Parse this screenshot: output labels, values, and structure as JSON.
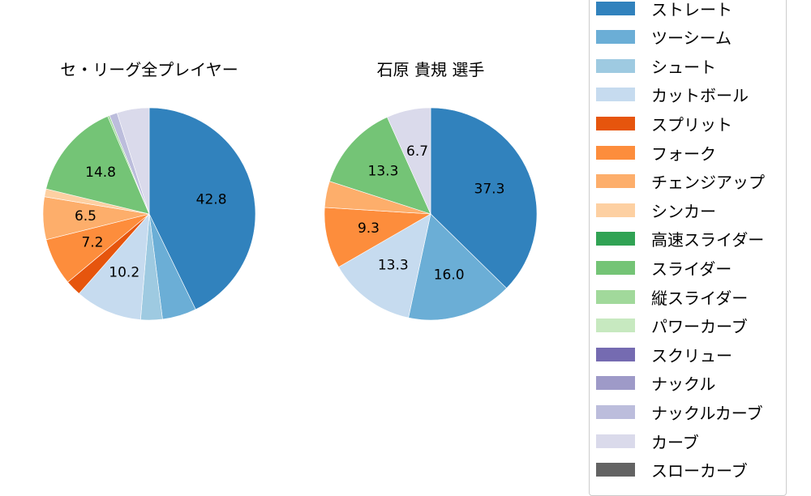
{
  "chart_data": [
    {
      "type": "pie",
      "title": "セ・リーグ全プレイヤー",
      "start_angle": "12 o'clock, clockwise",
      "categories": [
        "ストレート",
        "ツーシーム",
        "シュート",
        "カットボール",
        "スプリット",
        "フォーク",
        "チェンジアップ",
        "シンカー",
        "スライダー",
        "縦スライダー",
        "ナックルカーブ",
        "カーブ"
      ],
      "values": [
        42.8,
        5.2,
        3.3,
        10.2,
        2.4,
        7.2,
        6.5,
        1.2,
        14.8,
        0.3,
        1.2,
        4.9
      ],
      "colors": [
        "#3182bd",
        "#6baed6",
        "#9ecae1",
        "#c6dbef",
        "#e6550d",
        "#fd8d3c",
        "#fdae6b",
        "#fdd0a2",
        "#74c476",
        "#a1d99b",
        "#bcbddc",
        "#dadaeb"
      ],
      "labeled_values": [
        42.8,
        10.2,
        14.8
      ]
    },
    {
      "type": "pie",
      "title": "石原 貴規  選手",
      "start_angle": "12 o'clock, clockwise",
      "categories": [
        "ストレート",
        "ツーシーム",
        "カットボール",
        "フォーク",
        "チェンジアップ",
        "スライダー",
        "カーブ"
      ],
      "values": [
        37.3,
        16.0,
        13.3,
        9.3,
        4.0,
        13.3,
        6.7
      ],
      "colors": [
        "#3182bd",
        "#6baed6",
        "#c6dbef",
        "#fd8d3c",
        "#fdae6b",
        "#74c476",
        "#dadaeb"
      ],
      "labeled_values": [
        37.3,
        16.0,
        13.3,
        9.3,
        13.3,
        6.7
      ]
    }
  ],
  "legend": {
    "items": [
      {
        "label": "ストレート",
        "color": "#3182bd"
      },
      {
        "label": "ツーシーム",
        "color": "#6baed6"
      },
      {
        "label": "シュート",
        "color": "#9ecae1"
      },
      {
        "label": "カットボール",
        "color": "#c6dbef"
      },
      {
        "label": "スプリット",
        "color": "#e6550d"
      },
      {
        "label": "フォーク",
        "color": "#fd8d3c"
      },
      {
        "label": "チェンジアップ",
        "color": "#fdae6b"
      },
      {
        "label": "シンカー",
        "color": "#fdd0a2"
      },
      {
        "label": "高速スライダー",
        "color": "#31a354"
      },
      {
        "label": "スライダー",
        "color": "#74c476"
      },
      {
        "label": "縦スライダー",
        "color": "#a1d99b"
      },
      {
        "label": "パワーカーブ",
        "color": "#c7e9c0"
      },
      {
        "label": "スクリュー",
        "color": "#756bb1"
      },
      {
        "label": "ナックル",
        "color": "#9e9ac8"
      },
      {
        "label": "ナックルカーブ",
        "color": "#bcbddc"
      },
      {
        "label": "カーブ",
        "color": "#dadaeb"
      },
      {
        "label": "スローカーブ",
        "color": "#636363"
      }
    ]
  },
  "titles": {
    "left": "セ・リーグ全プレイヤー",
    "right": "石原 貴規  選手"
  }
}
